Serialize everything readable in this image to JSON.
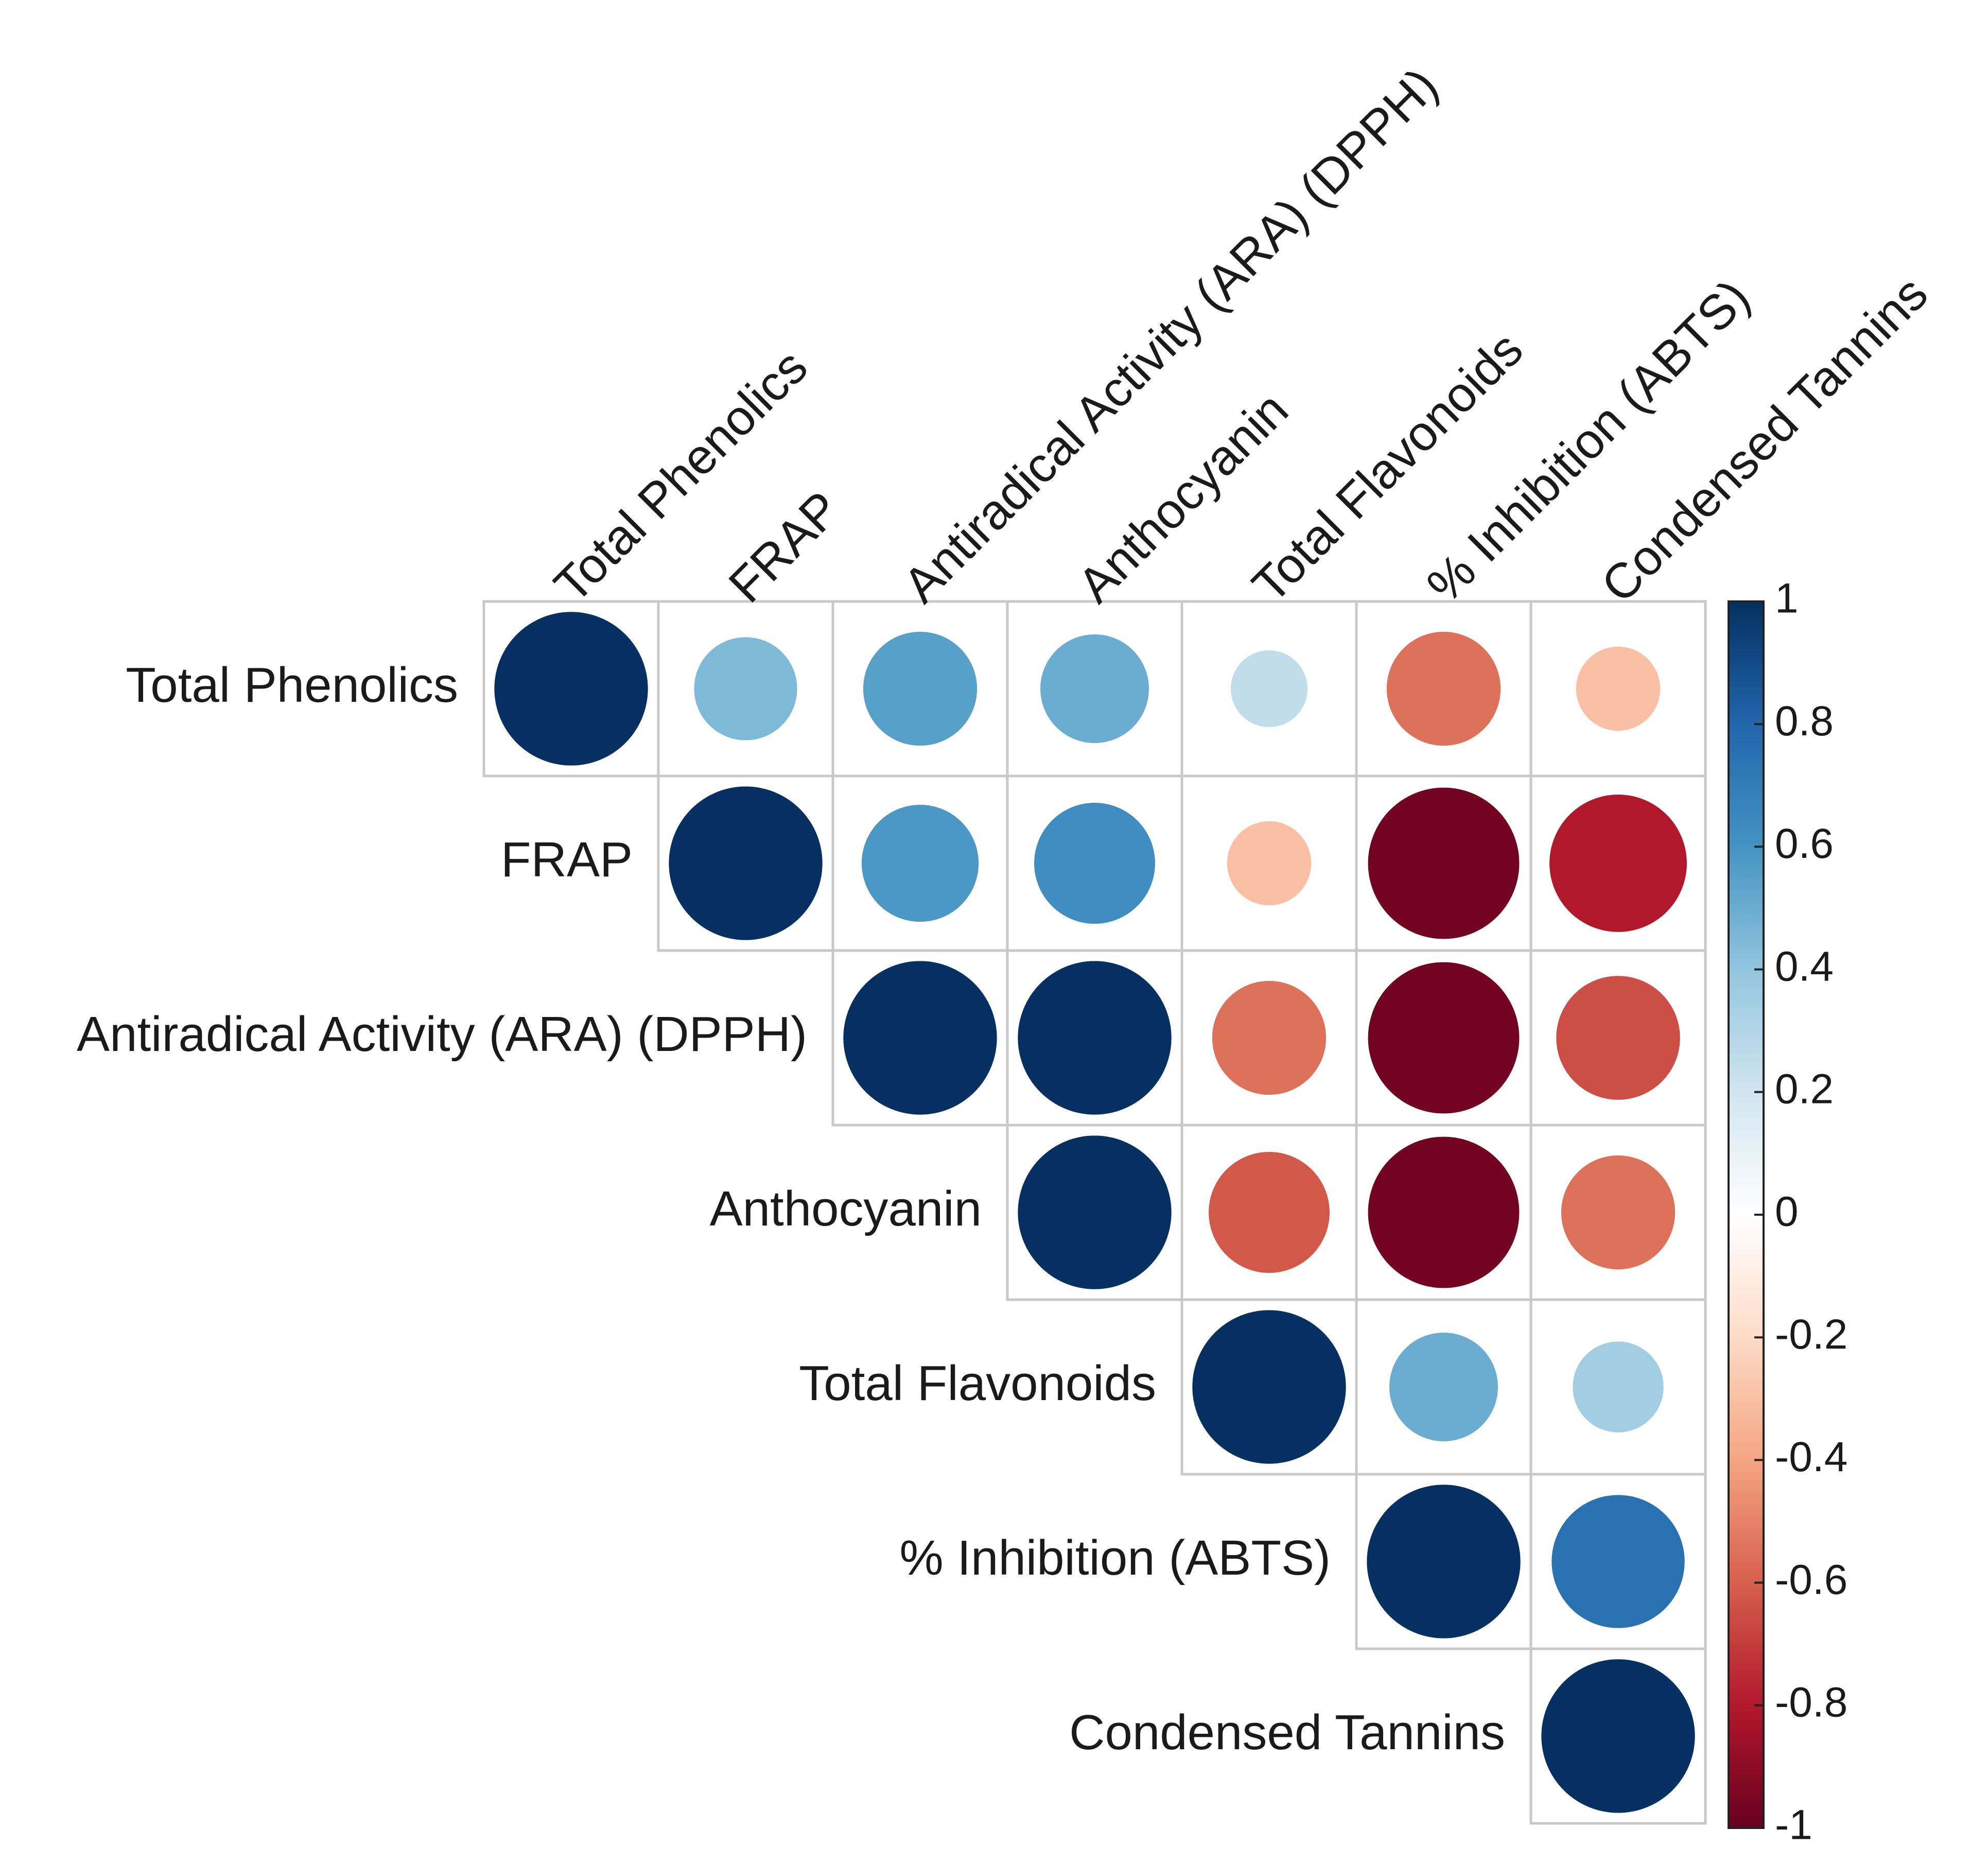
{
  "chart_data": {
    "type": "heatmap",
    "style": "correlation-circles-upper-triangle",
    "variables": [
      "Total Phenolics",
      "FRAP",
      "Antiradical Activity (ARA) (DPPH)",
      "Anthocyanin",
      "Total Flavonoids",
      "% Inhibition (ABTS)",
      "Condensed Tannins"
    ],
    "matrix": [
      [
        1.0,
        0.45,
        0.55,
        0.5,
        0.25,
        -0.55,
        -0.3
      ],
      [
        0.45,
        1.0,
        0.58,
        0.62,
        -0.3,
        -0.97,
        -0.8
      ],
      [
        0.55,
        0.58,
        1.0,
        1.0,
        -0.55,
        -0.97,
        -0.65
      ],
      [
        0.5,
        0.62,
        1.0,
        1.0,
        -0.62,
        -0.97,
        -0.55
      ],
      [
        0.25,
        -0.3,
        -0.55,
        -0.62,
        1.0,
        0.5,
        0.35
      ],
      [
        -0.55,
        -0.97,
        -0.97,
        -0.97,
        0.5,
        1.0,
        0.75
      ],
      [
        -0.3,
        -0.8,
        -0.65,
        -0.55,
        0.35,
        0.75,
        1.0
      ]
    ],
    "colorbar": {
      "range": [
        -1,
        1
      ],
      "tick_labels": [
        "1",
        "0.8",
        "0.6",
        "0.4",
        "0.2",
        "0",
        "-0.2",
        "-0.4",
        "-0.6",
        "-0.8",
        "-1"
      ],
      "tick_values": [
        1,
        0.8,
        0.6,
        0.4,
        0.2,
        0,
        -0.2,
        -0.4,
        -0.6,
        -0.8,
        -1
      ],
      "colors": [
        "#67001F",
        "#B2182B",
        "#D6604D",
        "#F4A582",
        "#FDDBC7",
        "#FFFFFF",
        "#D1E5F0",
        "#92C5DE",
        "#4393C3",
        "#2166AC",
        "#053061"
      ]
    },
    "title": "",
    "xlabel": "",
    "ylabel": ""
  }
}
